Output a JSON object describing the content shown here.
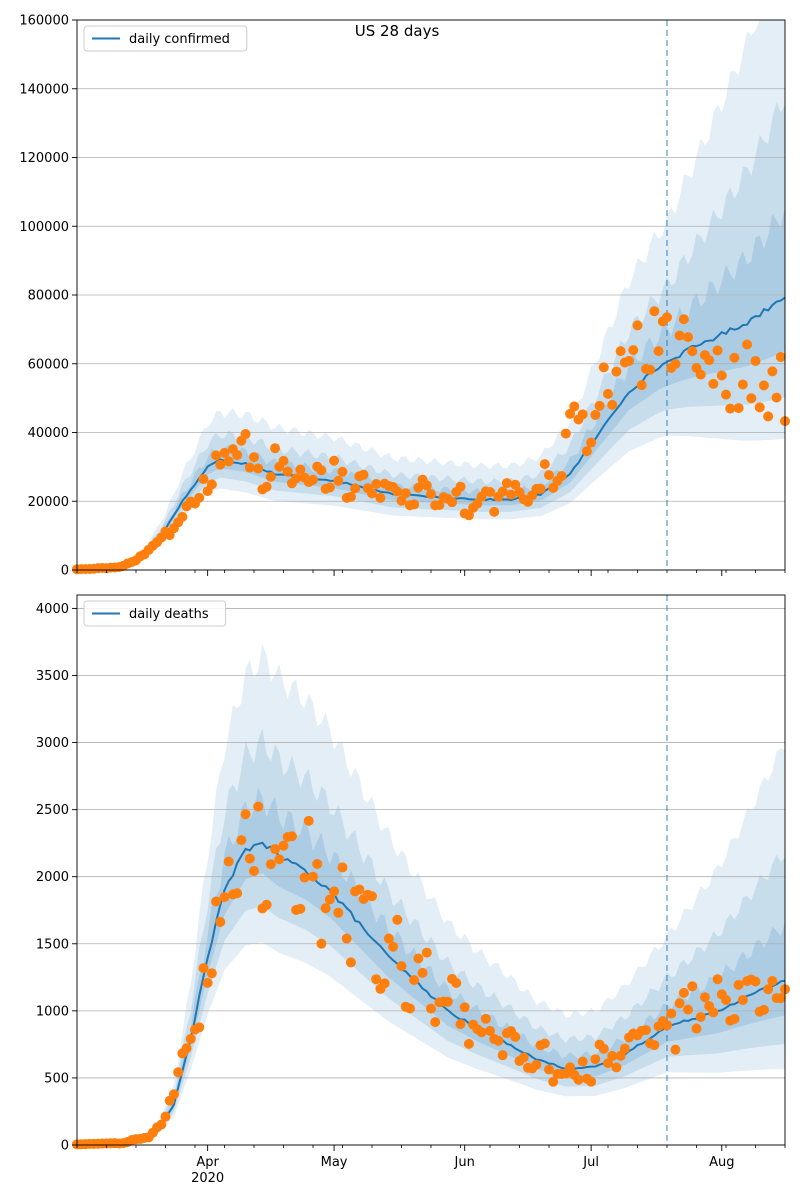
{
  "figure": {
    "title": "US 28 days"
  },
  "colors": {
    "model_line": "#1f77b4",
    "observed": "#ff7f0e",
    "band": "#1f77b4",
    "cutoff_line": "#1f77b4",
    "grid": "#b0b0b0"
  },
  "x_axis": {
    "range": [
      "2020-03-01",
      "2020-08-16"
    ],
    "month_labels": [
      {
        "date": "2020-04-01",
        "label": "Apr"
      },
      {
        "date": "2020-05-01",
        "label": "May"
      },
      {
        "date": "2020-06-01",
        "label": "Jun"
      },
      {
        "date": "2020-07-01",
        "label": "Jul"
      },
      {
        "date": "2020-08-01",
        "label": "Aug"
      }
    ],
    "year_label": "2020",
    "forecast_start": "2020-07-19"
  },
  "chart_data": [
    {
      "type": "line",
      "legend": {
        "label": "daily confirmed",
        "position": "top-left"
      },
      "ylim": [
        0,
        160000
      ],
      "yticks": [
        "0",
        "20000",
        "40000",
        "60000",
        "80000",
        "100000",
        "120000",
        "140000",
        "160000"
      ],
      "grid": "horizontal",
      "model_median_knots": [
        [
          "2020-03-01",
          300
        ],
        [
          "2020-03-08",
          700
        ],
        [
          "2020-03-14",
          2000
        ],
        [
          "2020-03-18",
          6000
        ],
        [
          "2020-03-22",
          12000
        ],
        [
          "2020-03-26",
          20000
        ],
        [
          "2020-03-29",
          25000
        ],
        [
          "2020-04-01",
          30000
        ],
        [
          "2020-04-04",
          32000
        ],
        [
          "2020-04-10",
          31000
        ],
        [
          "2020-04-17",
          28000
        ],
        [
          "2020-04-24",
          27000
        ],
        [
          "2020-05-01",
          26000
        ],
        [
          "2020-05-08",
          24000
        ],
        [
          "2020-05-15",
          22000
        ],
        [
          "2020-05-22",
          21500
        ],
        [
          "2020-05-29",
          21000
        ],
        [
          "2020-06-05",
          20500
        ],
        [
          "2020-06-12",
          20500
        ],
        [
          "2020-06-19",
          22000
        ],
        [
          "2020-06-26",
          28000
        ],
        [
          "2020-07-03",
          40000
        ],
        [
          "2020-07-10",
          52000
        ],
        [
          "2020-07-17",
          59000
        ],
        [
          "2020-07-24",
          64000
        ],
        [
          "2020-07-31",
          68000
        ],
        [
          "2020-08-07",
          72000
        ],
        [
          "2020-08-13",
          77000
        ],
        [
          "2020-08-16",
          80000
        ]
      ],
      "band_scale_knots": [
        [
          "2020-03-01",
          0.15
        ],
        [
          "2020-04-15",
          0.25
        ],
        [
          "2020-06-15",
          0.25
        ],
        [
          "2020-07-19",
          0.35
        ],
        [
          "2020-08-16",
          0.7
        ]
      ],
      "observed_knots": [
        [
          "2020-03-01",
          200
        ],
        [
          "2020-03-10",
          700
        ],
        [
          "2020-03-15",
          2500
        ],
        [
          "2020-03-20",
          8000
        ],
        [
          "2020-03-24",
          12000
        ],
        [
          "2020-03-28",
          19000
        ],
        [
          "2020-04-01",
          28000
        ],
        [
          "2020-04-04",
          32000
        ],
        [
          "2020-04-10",
          33000
        ],
        [
          "2020-04-17",
          29000
        ],
        [
          "2020-04-24",
          28000
        ],
        [
          "2020-05-01",
          28000
        ],
        [
          "2020-05-08",
          25000
        ],
        [
          "2020-05-15",
          23000
        ],
        [
          "2020-05-22",
          22000
        ],
        [
          "2020-05-29",
          21000
        ],
        [
          "2020-06-05",
          21000
        ],
        [
          "2020-06-12",
          21500
        ],
        [
          "2020-06-19",
          25000
        ],
        [
          "2020-06-26",
          38000
        ],
        [
          "2020-07-03",
          50000
        ],
        [
          "2020-07-10",
          60000
        ],
        [
          "2020-07-17",
          67000
        ],
        [
          "2020-07-24",
          66000
        ],
        [
          "2020-07-31",
          60000
        ],
        [
          "2020-08-07",
          55000
        ],
        [
          "2020-08-16",
          50000
        ]
      ]
    },
    {
      "type": "line",
      "legend": {
        "label": "daily deaths",
        "position": "top-left"
      },
      "ylim": [
        0,
        4100
      ],
      "yticks": [
        "0",
        "500",
        "1000",
        "1500",
        "2000",
        "2500",
        "3000",
        "3500",
        "4000"
      ],
      "grid": "horizontal",
      "model_median_knots": [
        [
          "2020-03-01",
          5
        ],
        [
          "2020-03-10",
          10
        ],
        [
          "2020-03-15",
          30
        ],
        [
          "2020-03-20",
          100
        ],
        [
          "2020-03-24",
          300
        ],
        [
          "2020-03-28",
          800
        ],
        [
          "2020-04-01",
          1400
        ],
        [
          "2020-04-05",
          1900
        ],
        [
          "2020-04-10",
          2200
        ],
        [
          "2020-04-14",
          2260
        ],
        [
          "2020-04-18",
          2150
        ],
        [
          "2020-04-24",
          2050
        ],
        [
          "2020-04-30",
          1900
        ],
        [
          "2020-05-07",
          1650
        ],
        [
          "2020-05-14",
          1400
        ],
        [
          "2020-05-21",
          1200
        ],
        [
          "2020-05-28",
          1000
        ],
        [
          "2020-06-04",
          870
        ],
        [
          "2020-06-11",
          760
        ],
        [
          "2020-06-18",
          640
        ],
        [
          "2020-06-25",
          570
        ],
        [
          "2020-07-02",
          580
        ],
        [
          "2020-07-09",
          680
        ],
        [
          "2020-07-19",
          880
        ],
        [
          "2020-07-31",
          1000
        ],
        [
          "2020-08-10",
          1150
        ],
        [
          "2020-08-16",
          1230
        ]
      ],
      "band_scale_knots": [
        [
          "2020-03-01",
          0.2
        ],
        [
          "2020-04-15",
          0.32
        ],
        [
          "2020-06-15",
          0.35
        ],
        [
          "2020-07-19",
          0.4
        ],
        [
          "2020-08-16",
          0.75
        ]
      ],
      "observed_knots": [
        [
          "2020-03-01",
          5
        ],
        [
          "2020-03-12",
          15
        ],
        [
          "2020-03-18",
          60
        ],
        [
          "2020-03-22",
          200
        ],
        [
          "2020-03-26",
          600
        ],
        [
          "2020-03-30",
          1100
        ],
        [
          "2020-04-03",
          1600
        ],
        [
          "2020-04-08",
          2100
        ],
        [
          "2020-04-14",
          2300
        ],
        [
          "2020-04-20",
          2150
        ],
        [
          "2020-04-27",
          2000
        ],
        [
          "2020-05-04",
          1800
        ],
        [
          "2020-05-11",
          1550
        ],
        [
          "2020-05-18",
          1300
        ],
        [
          "2020-05-25",
          1100
        ],
        [
          "2020-06-01",
          950
        ],
        [
          "2020-06-08",
          800
        ],
        [
          "2020-06-15",
          700
        ],
        [
          "2020-06-22",
          600
        ],
        [
          "2020-06-29",
          560
        ],
        [
          "2020-07-06",
          640
        ],
        [
          "2020-07-13",
          780
        ],
        [
          "2020-07-20",
          900
        ],
        [
          "2020-07-27",
          1050
        ],
        [
          "2020-08-03",
          1100
        ],
        [
          "2020-08-10",
          1050
        ],
        [
          "2020-08-16",
          1050
        ]
      ]
    }
  ]
}
